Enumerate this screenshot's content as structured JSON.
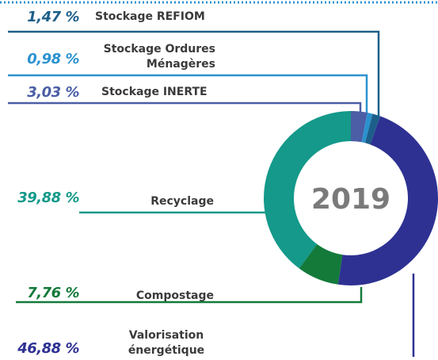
{
  "chart_data": {
    "type": "donut",
    "center_label": "2019",
    "categories": [
      "Stockage REFIOM",
      "Stockage Ordures Ménagères",
      "Stockage INERTE",
      "Recyclage",
      "Compostage",
      "Valorisation énergétique"
    ],
    "values": [
      1.47,
      0.98,
      3.03,
      39.88,
      7.76,
      46.88
    ],
    "value_labels": [
      "1,47 %",
      "0,98 %",
      "3,03 %",
      "39,88 %",
      "7,76 %",
      "46,88 %"
    ],
    "colors": [
      "#1d5f8a",
      "#2b92cf",
      "#4b5ea6",
      "#14998a",
      "#137a3a",
      "#2e3192"
    ]
  }
}
